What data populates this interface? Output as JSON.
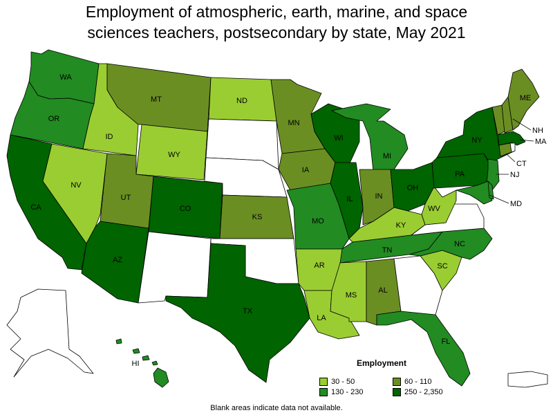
{
  "title": {
    "line1": "Employment of atmospheric, earth, marine, and space",
    "line2": "sciences teachers, postsecondary by state, May 2021"
  },
  "legend": {
    "title": "Employment",
    "items": [
      {
        "label": "30 - 50",
        "color": "#9acd32"
      },
      {
        "label": "60 - 110",
        "color": "#6b8e23"
      },
      {
        "label": "130 - 230",
        "color": "#228b22"
      },
      {
        "label": "250 - 2,350",
        "color": "#006400"
      }
    ]
  },
  "footnote": "Blank areas indicate data not available.",
  "colors": {
    "c1": "#9acd32",
    "c2": "#6b8e23",
    "c3": "#228b22",
    "c4": "#006400",
    "none": "#ffffff"
  },
  "states": [
    {
      "id": "WA",
      "cat": "c3"
    },
    {
      "id": "OR",
      "cat": "c3"
    },
    {
      "id": "CA",
      "cat": "c4"
    },
    {
      "id": "ID",
      "cat": "c1"
    },
    {
      "id": "NV",
      "cat": "c1"
    },
    {
      "id": "MT",
      "cat": "c2"
    },
    {
      "id": "WY",
      "cat": "c1"
    },
    {
      "id": "UT",
      "cat": "c2"
    },
    {
      "id": "AZ",
      "cat": "c4"
    },
    {
      "id": "CO",
      "cat": "c4"
    },
    {
      "id": "NM",
      "cat": "none"
    },
    {
      "id": "ND",
      "cat": "c1"
    },
    {
      "id": "SD",
      "cat": "none"
    },
    {
      "id": "NE",
      "cat": "none"
    },
    {
      "id": "KS",
      "cat": "c2"
    },
    {
      "id": "OK",
      "cat": "none"
    },
    {
      "id": "TX",
      "cat": "c4"
    },
    {
      "id": "MN",
      "cat": "c2"
    },
    {
      "id": "IA",
      "cat": "c2"
    },
    {
      "id": "MO",
      "cat": "c3"
    },
    {
      "id": "AR",
      "cat": "c1"
    },
    {
      "id": "LA",
      "cat": "c1"
    },
    {
      "id": "WI",
      "cat": "c4"
    },
    {
      "id": "IL",
      "cat": "c4"
    },
    {
      "id": "MI",
      "cat": "c3"
    },
    {
      "id": "IN",
      "cat": "c2"
    },
    {
      "id": "OH",
      "cat": "c4"
    },
    {
      "id": "KY",
      "cat": "c1"
    },
    {
      "id": "TN",
      "cat": "c3"
    },
    {
      "id": "MS",
      "cat": "c1"
    },
    {
      "id": "AL",
      "cat": "c2"
    },
    {
      "id": "GA",
      "cat": "none"
    },
    {
      "id": "FL",
      "cat": "c3"
    },
    {
      "id": "SC",
      "cat": "c1"
    },
    {
      "id": "NC",
      "cat": "c3"
    },
    {
      "id": "VA",
      "cat": "none"
    },
    {
      "id": "WV",
      "cat": "c1"
    },
    {
      "id": "PA",
      "cat": "c4"
    },
    {
      "id": "NY",
      "cat": "c4"
    },
    {
      "id": "NJ",
      "cat": "c3"
    },
    {
      "id": "MD",
      "cat": "c3"
    },
    {
      "id": "DE",
      "cat": "c3"
    },
    {
      "id": "VT",
      "cat": "c2"
    },
    {
      "id": "NH",
      "cat": "c2"
    },
    {
      "id": "ME",
      "cat": "c2"
    },
    {
      "id": "MA",
      "cat": "c4"
    },
    {
      "id": "CT",
      "cat": "c2"
    },
    {
      "id": "RI",
      "cat": "none"
    },
    {
      "id": "AK",
      "cat": "none"
    },
    {
      "id": "HI",
      "cat": "c3"
    },
    {
      "id": "PR",
      "cat": "none"
    }
  ]
}
